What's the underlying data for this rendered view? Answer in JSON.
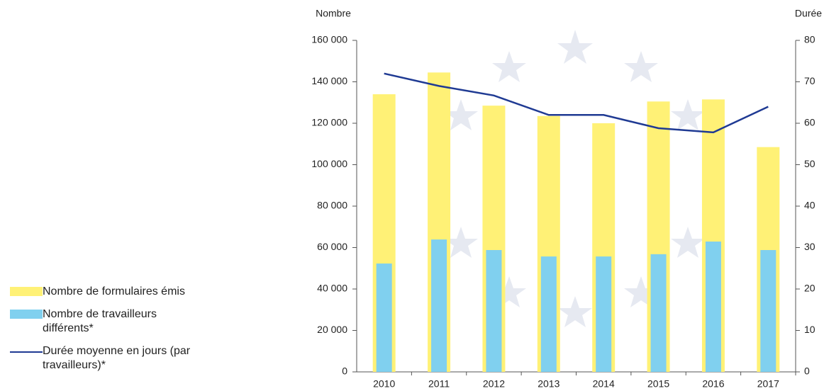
{
  "chart_data": {
    "type": "bar_line",
    "y_label": "Nombre",
    "y2_label": "Durée",
    "categories": [
      "2010",
      "2011",
      "2012",
      "2013",
      "2014",
      "2015",
      "2016",
      "2017"
    ],
    "series": [
      {
        "name": "Nombre de formulaires émis",
        "color": "#fff176",
        "kind": "bar",
        "values": [
          134000,
          144500,
          128500,
          123500,
          120000,
          130500,
          131500,
          108500
        ]
      },
      {
        "name": "Nombre de travailleurs différents*",
        "color": "#80d0ef",
        "kind": "bar",
        "values": [
          52300,
          63900,
          58800,
          55700,
          55700,
          56800,
          62900,
          58800
        ]
      },
      {
        "name": "Durée moyenne en jours (par travailleurs)*",
        "color": "#1f3a93",
        "kind": "line",
        "axis": "y2",
        "values": [
          72,
          69,
          66.7,
          62,
          62,
          58.8,
          57.8,
          64
        ]
      }
    ],
    "ylim": [
      0,
      160000
    ],
    "yticks": [
      0,
      {
        "value": 20000,
        "label": "20 000"
      },
      {
        "value": 40000,
        "label": "40 000"
      },
      {
        "value": 60000,
        "label": "60 000"
      },
      {
        "value": 80000,
        "label": "80 000"
      },
      {
        "value": 100000,
        "label": "100 000"
      },
      {
        "value": 120000,
        "label": "120 000"
      },
      {
        "value": 140000,
        "label": "140 000"
      },
      {
        "value": 160000,
        "label": "160 000"
      }
    ],
    "y2lim": [
      0,
      80
    ],
    "y2ticks": [
      0,
      10,
      20,
      30,
      40,
      50,
      60,
      70,
      80
    ],
    "legend": "bottom-left"
  }
}
